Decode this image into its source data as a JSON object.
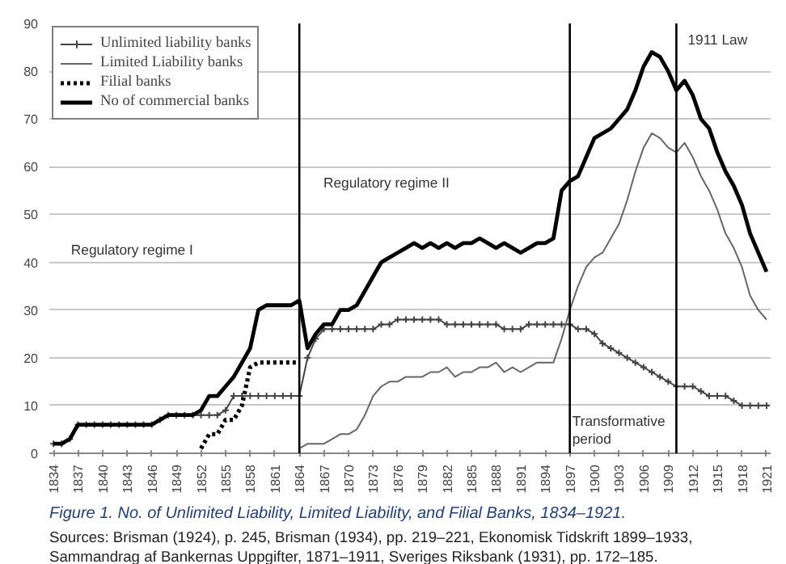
{
  "chart_data": {
    "type": "line",
    "title": "Figure 1. No. of Unlimited Liability, Limited Liability, and Filial Banks, 1834–1921.",
    "x": [
      1834,
      1835,
      1836,
      1837,
      1838,
      1839,
      1840,
      1841,
      1842,
      1843,
      1844,
      1845,
      1846,
      1847,
      1848,
      1849,
      1850,
      1851,
      1852,
      1853,
      1854,
      1855,
      1856,
      1857,
      1858,
      1859,
      1860,
      1861,
      1862,
      1863,
      1864,
      1865,
      1866,
      1867,
      1868,
      1869,
      1870,
      1871,
      1872,
      1873,
      1874,
      1875,
      1876,
      1877,
      1878,
      1879,
      1880,
      1881,
      1882,
      1883,
      1884,
      1885,
      1886,
      1887,
      1888,
      1889,
      1890,
      1891,
      1892,
      1893,
      1894,
      1895,
      1896,
      1897,
      1898,
      1899,
      1900,
      1901,
      1902,
      1903,
      1904,
      1905,
      1906,
      1907,
      1908,
      1909,
      1910,
      1911,
      1912,
      1913,
      1914,
      1915,
      1916,
      1917,
      1918,
      1919,
      1920,
      1921
    ],
    "series": [
      {
        "name": "Unlimited liability banks",
        "color": "#444444",
        "marker": "cross",
        "values": [
          2,
          2,
          3,
          6,
          6,
          6,
          6,
          6,
          6,
          6,
          6,
          6,
          6,
          7,
          8,
          8,
          8,
          8,
          8,
          8,
          8,
          9,
          12,
          12,
          12,
          12,
          12,
          12,
          12,
          12,
          12,
          20,
          24,
          26,
          26,
          26,
          26,
          26,
          26,
          26,
          27,
          27,
          28,
          28,
          28,
          28,
          28,
          28,
          27,
          27,
          27,
          27,
          27,
          27,
          27,
          26,
          26,
          26,
          27,
          27,
          27,
          27,
          27,
          27,
          26,
          26,
          25,
          23,
          22,
          21,
          20,
          19,
          18,
          17,
          16,
          15,
          14,
          14,
          14,
          13,
          12,
          12,
          12,
          11,
          10,
          10,
          10,
          10
        ]
      },
      {
        "name": "Limited Liability banks",
        "color": "#666666",
        "values": [
          null,
          null,
          null,
          null,
          null,
          null,
          null,
          null,
          null,
          null,
          null,
          null,
          null,
          null,
          null,
          null,
          null,
          null,
          null,
          null,
          null,
          null,
          null,
          null,
          null,
          null,
          null,
          null,
          null,
          null,
          1,
          2,
          2,
          2,
          3,
          4,
          4,
          5,
          8,
          12,
          14,
          15,
          15,
          16,
          16,
          16,
          17,
          17,
          18,
          16,
          17,
          17,
          18,
          18,
          19,
          17,
          18,
          17,
          18,
          19,
          19,
          19,
          24,
          30,
          35,
          39,
          41,
          42,
          45,
          48,
          53,
          59,
          64,
          67,
          66,
          64,
          63,
          65,
          62,
          58,
          55,
          51,
          46,
          43,
          39,
          33,
          30,
          28
        ]
      },
      {
        "name": "Filial banks",
        "color": "#000000",
        "line_style": "dotted",
        "values": [
          null,
          null,
          null,
          null,
          null,
          null,
          null,
          null,
          null,
          null,
          null,
          null,
          null,
          null,
          null,
          null,
          null,
          null,
          1,
          4,
          4,
          7,
          7,
          10,
          18,
          19,
          19,
          19,
          19,
          19,
          19,
          null,
          null,
          null,
          null,
          null,
          null,
          null,
          null,
          null,
          null,
          null,
          null,
          null,
          null,
          null,
          null,
          null,
          null,
          null,
          null,
          null,
          null,
          null,
          null,
          null,
          null,
          null,
          null,
          null,
          null,
          null,
          null,
          null,
          null,
          null,
          null,
          null,
          null,
          null,
          null,
          null,
          null,
          null,
          null,
          null,
          null,
          null,
          null,
          null,
          null,
          null,
          null,
          null,
          null,
          null,
          null,
          null
        ]
      },
      {
        "name": "No of commercial banks",
        "color": "#000000",
        "values": [
          2,
          2,
          3,
          6,
          6,
          6,
          6,
          6,
          6,
          6,
          6,
          6,
          6,
          7,
          8,
          8,
          8,
          8,
          9,
          12,
          12,
          14,
          16,
          19,
          22,
          30,
          31,
          31,
          31,
          31,
          32,
          22,
          25,
          27,
          27,
          30,
          30,
          31,
          34,
          37,
          40,
          41,
          42,
          43,
          44,
          43,
          44,
          43,
          44,
          43,
          44,
          44,
          45,
          44,
          43,
          44,
          43,
          42,
          43,
          44,
          44,
          45,
          55,
          57,
          58,
          62,
          66,
          67,
          68,
          70,
          72,
          76,
          81,
          84,
          83,
          80,
          76,
          78,
          75,
          70,
          68,
          63,
          59,
          56,
          52,
          46,
          42,
          38
        ]
      }
    ],
    "xlim": [
      1833.5,
      1921.5
    ],
    "xticks": [
      1834,
      1837,
      1840,
      1843,
      1846,
      1849,
      1852,
      1855,
      1858,
      1861,
      1864,
      1867,
      1870,
      1873,
      1876,
      1879,
      1882,
      1885,
      1888,
      1891,
      1894,
      1897,
      1900,
      1903,
      1906,
      1909,
      1912,
      1915,
      1918,
      1921
    ],
    "ylim": [
      0,
      90
    ],
    "yticks": [
      0,
      10,
      20,
      30,
      40,
      50,
      60,
      70,
      80,
      90
    ],
    "grid": "y",
    "legend": "top left",
    "marker": "none",
    "line_style": "solid",
    "ref_lines": [
      {
        "axis": "x",
        "value": 1864,
        "color": "#000000"
      },
      {
        "axis": "x",
        "value": 1897,
        "color": "#000000"
      },
      {
        "axis": "x",
        "value": 1910,
        "color": "#000000"
      }
    ],
    "annotations": [
      "Regulatory regime I",
      "Regulatory regime II",
      "Transformative period",
      "1911 Law",
      "Sources: Brisman (1924), p. 245, Brisman (1934), pp. 219–221, Ekonomisk Tidskrift 1899–1933, Sammandrag af Bankernas Uppgifter, 1871–1911, Sveriges Riksbank (1931), pp. 172–185."
    ]
  }
}
